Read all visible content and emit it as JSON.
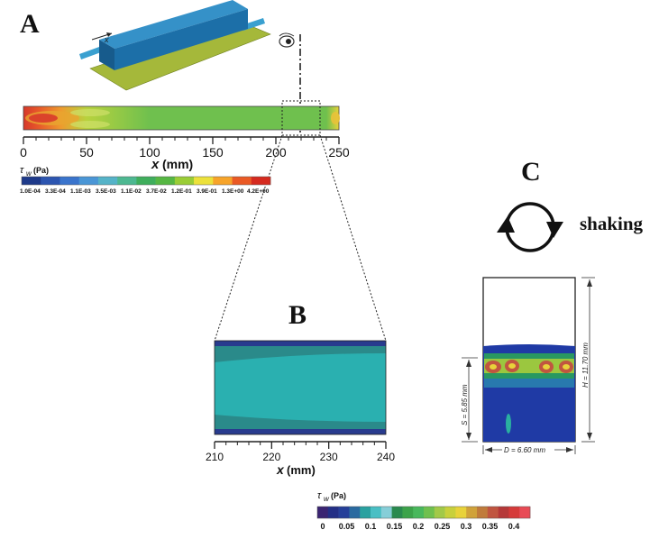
{
  "panels": {
    "a": "A",
    "b": "B",
    "c": "C"
  },
  "panel_a": {
    "pipe_axis_label": "x",
    "axis_label_x": "x",
    "axis_unit": "(mm)",
    "ticks": [
      "0",
      "50",
      "100",
      "150",
      "200",
      "250"
    ],
    "legend_title_sym": "τ",
    "legend_title_sub": "w",
    "legend_title_unit": "(Pa)",
    "legend_labels": [
      "1.0E-04",
      "3.3E-04",
      "1.1E-03",
      "3.5E-03",
      "1.1E-02",
      "3.7E-02",
      "1.2E-01",
      "3.9E-01",
      "1.3E+00",
      "4.2E+00"
    ],
    "legend_colors": [
      "#1e3a8a",
      "#2c55b0",
      "#3a74cc",
      "#4a96d6",
      "#55b3c8",
      "#4db891",
      "#3fae5c",
      "#56b743",
      "#9acd36",
      "#ece13b",
      "#f7a42a",
      "#ea5a25",
      "#d52a1f"
    ]
  },
  "panel_b": {
    "axis_label_x": "x",
    "axis_unit": "(mm)",
    "ticks": [
      "210",
      "220",
      "230",
      "240"
    ],
    "legend_title_sym": "τ",
    "legend_title_sub": "w",
    "legend_title_unit": "(Pa)",
    "legend_labels": [
      "0",
      "0.05",
      "0.1",
      "0.15",
      "0.2",
      "0.25",
      "0.3",
      "0.35",
      "0.4"
    ],
    "legend_colors": [
      "#3a2472",
      "#232f86",
      "#253f99",
      "#2a6aa0",
      "#2aa1a0",
      "#49bfc4",
      "#86ced8",
      "#2a8a4f",
      "#3ca34a",
      "#49b85c",
      "#6fc04e",
      "#a2c948",
      "#c8d03c",
      "#e8d23a",
      "#d0a23a",
      "#c07b3b",
      "#c05540",
      "#b53838",
      "#d53a3a",
      "#e84a55"
    ]
  },
  "panel_c": {
    "shaking_label": "shaking",
    "h_label": "H = 11.70 mm",
    "s_label": "S = 5.85 mm",
    "d_label": "D = 6.60 mm"
  }
}
